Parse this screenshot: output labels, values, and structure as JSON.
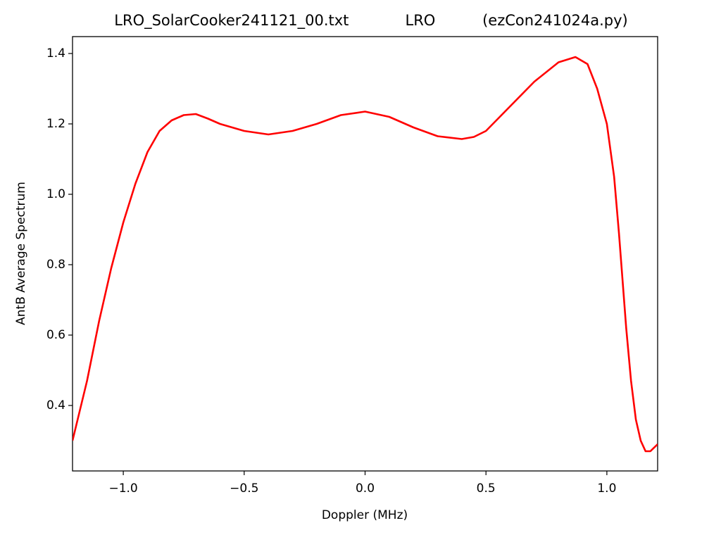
{
  "chart_data": {
    "type": "line",
    "title": "LRO_SolarCooker241121_00.txt            LRO          (ezCon241024a.py)",
    "xlabel": "Doppler (MHz)",
    "ylabel": "AntB Average Spectrum",
    "x": [
      -1.21,
      -1.15,
      -1.1,
      -1.05,
      -1.0,
      -0.95,
      -0.9,
      -0.85,
      -0.8,
      -0.75,
      -0.7,
      -0.65,
      -0.6,
      -0.5,
      -0.4,
      -0.3,
      -0.2,
      -0.1,
      0.0,
      0.1,
      0.2,
      0.3,
      0.4,
      0.45,
      0.5,
      0.6,
      0.7,
      0.8,
      0.87,
      0.92,
      0.96,
      1.0,
      1.03,
      1.05,
      1.08,
      1.1,
      1.12,
      1.14,
      1.16,
      1.18,
      1.21
    ],
    "series": [
      {
        "name": "AntB",
        "color": "#ff0000",
        "values": [
          0.3,
          0.47,
          0.64,
          0.79,
          0.92,
          1.03,
          1.12,
          1.18,
          1.21,
          1.225,
          1.228,
          1.215,
          1.2,
          1.18,
          1.17,
          1.18,
          1.2,
          1.225,
          1.235,
          1.22,
          1.19,
          1.165,
          1.157,
          1.163,
          1.18,
          1.25,
          1.32,
          1.375,
          1.39,
          1.37,
          1.3,
          1.2,
          1.05,
          0.89,
          0.62,
          0.47,
          0.36,
          0.3,
          0.27,
          0.27,
          0.29
        ]
      }
    ],
    "xlim": [
      -1.21,
      1.21
    ],
    "ylim": [
      0.214,
      1.448
    ],
    "xticks": [
      {
        "value": -1.0,
        "label": "−1.0"
      },
      {
        "value": -0.5,
        "label": "−0.5"
      },
      {
        "value": 0.0,
        "label": "0.0"
      },
      {
        "value": 0.5,
        "label": "0.5"
      },
      {
        "value": 1.0,
        "label": "1.0"
      }
    ],
    "yticks": [
      0.4,
      0.6,
      0.8,
      {
        "value": 1.0,
        "label": "1.0"
      },
      1.2,
      1.4
    ],
    "grid": false
  }
}
